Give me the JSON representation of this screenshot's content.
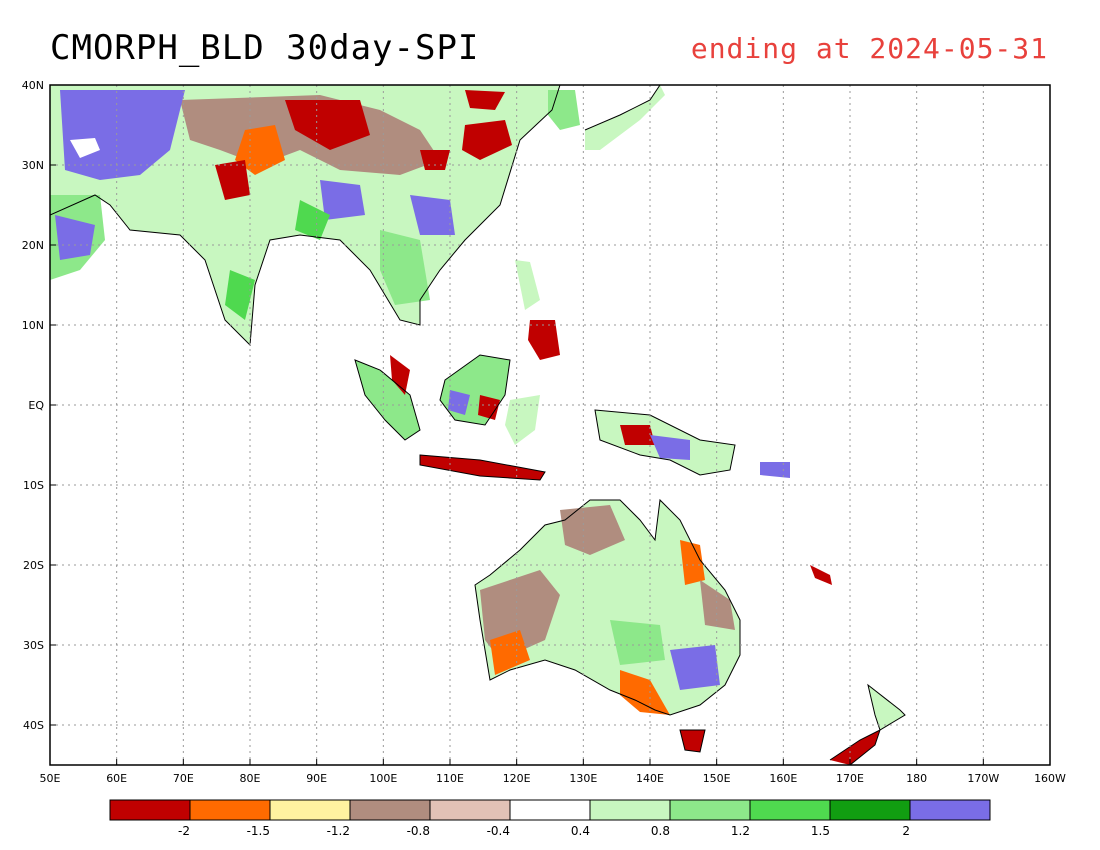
{
  "title": "CMORPH_BLD 30day-SPI",
  "subtitle": "ending at 2024-05-31",
  "map": {
    "lon_range": [
      50,
      200
    ],
    "lat_range": [
      -45,
      40
    ],
    "lon_ticks": [
      {
        "value": 50,
        "label": "50E"
      },
      {
        "value": 60,
        "label": "60E"
      },
      {
        "value": 70,
        "label": "70E"
      },
      {
        "value": 80,
        "label": "80E"
      },
      {
        "value": 90,
        "label": "90E"
      },
      {
        "value": 100,
        "label": "100E"
      },
      {
        "value": 110,
        "label": "110E"
      },
      {
        "value": 120,
        "label": "120E"
      },
      {
        "value": 130,
        "label": "130E"
      },
      {
        "value": 140,
        "label": "140E"
      },
      {
        "value": 150,
        "label": "150E"
      },
      {
        "value": 160,
        "label": "160E"
      },
      {
        "value": 170,
        "label": "170E"
      },
      {
        "value": 180,
        "label": "180"
      },
      {
        "value": 190,
        "label": "170W"
      },
      {
        "value": 200,
        "label": "160W"
      }
    ],
    "lat_ticks": [
      {
        "value": 40,
        "label": "40N"
      },
      {
        "value": 30,
        "label": "30N"
      },
      {
        "value": 20,
        "label": "20N"
      },
      {
        "value": 10,
        "label": "10N"
      },
      {
        "value": 0,
        "label": "EQ"
      },
      {
        "value": -10,
        "label": "10S"
      },
      {
        "value": -20,
        "label": "20S"
      },
      {
        "value": -30,
        "label": "30S"
      },
      {
        "value": -40,
        "label": "40S"
      }
    ]
  },
  "colorbar": {
    "colors": [
      "#c00000",
      "#ff6a00",
      "#fff3a0",
      "#b08d7f",
      "#e3c1b6",
      "#ffffff",
      "#c8f7c0",
      "#8de88a",
      "#4fd94f",
      "#119e11",
      "#7a6de6"
    ],
    "labels": [
      "-2",
      "-1.5",
      "-1.2",
      "-0.8",
      "-0.4",
      "0.4",
      "0.8",
      "1.2",
      "1.5",
      "2"
    ]
  }
}
